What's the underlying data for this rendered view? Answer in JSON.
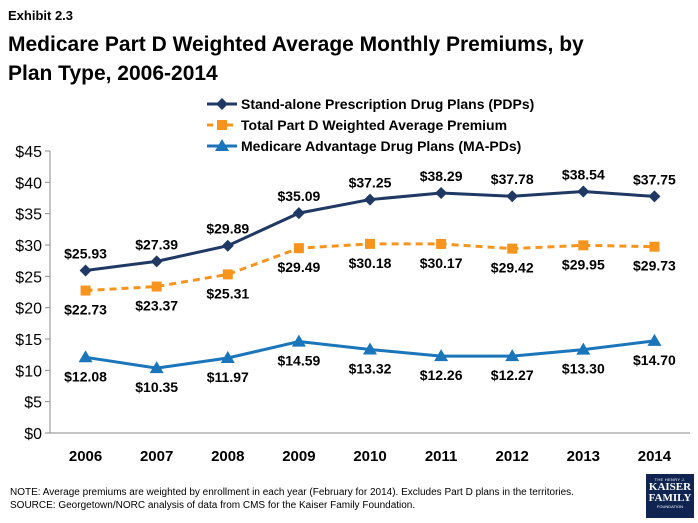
{
  "exhibit": "Exhibit 2.3",
  "title": "Medicare Part D Weighted Average Monthly Premiums, by Plan Type, 2006-2014",
  "note": "NOTE: Average premiums are weighted by enrollment in each year (February for 2014).  Excludes Part D plans in the territories.",
  "source": "SOURCE: Georgetown/NORC analysis of data from CMS for the Kaiser Family Foundation.",
  "logo": {
    "line1": "THE HENRY J.",
    "line2": "KAISER",
    "line3": "FAMILY",
    "line4": "FOUNDATION"
  },
  "chart_data": {
    "type": "line",
    "categories": [
      "2006",
      "2007",
      "2008",
      "2009",
      "2010",
      "2011",
      "2012",
      "2013",
      "2014"
    ],
    "ylim": [
      0,
      45
    ],
    "yticks": [
      "$0",
      "$5",
      "$10",
      "$15",
      "$20",
      "$25",
      "$30",
      "$35",
      "$40",
      "$45"
    ],
    "grid": false,
    "legend_position": "top",
    "series": [
      {
        "name": "Stand-alone Prescription Drug Plans (PDPs)",
        "color": "#1f3864",
        "marker": "diamond",
        "dash": false,
        "values": [
          25.93,
          27.39,
          29.89,
          35.09,
          37.25,
          38.29,
          37.78,
          38.54,
          37.75
        ],
        "labels": [
          "$25.93",
          "$27.39",
          "$29.89",
          "$35.09",
          "$37.25",
          "$38.29",
          "$37.78",
          "$38.54",
          "$37.75"
        ],
        "label_position": "above"
      },
      {
        "name": "Total Part D Weighted Average Premium",
        "color": "#f7941d",
        "marker": "square",
        "dash": true,
        "values": [
          22.73,
          23.37,
          25.31,
          29.49,
          30.18,
          30.17,
          29.42,
          29.95,
          29.73
        ],
        "labels": [
          "$22.73",
          "$23.37",
          "$25.31",
          "$29.49",
          "$30.18",
          "$30.17",
          "$29.42",
          "$29.95",
          "$29.73"
        ],
        "label_position": "below"
      },
      {
        "name": "Medicare Advantage Drug Plans (MA-PDs)",
        "color": "#1b75bb",
        "marker": "triangle",
        "dash": false,
        "values": [
          12.08,
          10.35,
          11.97,
          14.59,
          13.32,
          12.26,
          12.27,
          13.3,
          14.7
        ],
        "labels": [
          "$12.08",
          "$10.35",
          "$11.97",
          "$14.59",
          "$13.32",
          "$12.26",
          "$12.27",
          "$13.30",
          "$14.70"
        ],
        "label_position": "below"
      }
    ]
  }
}
